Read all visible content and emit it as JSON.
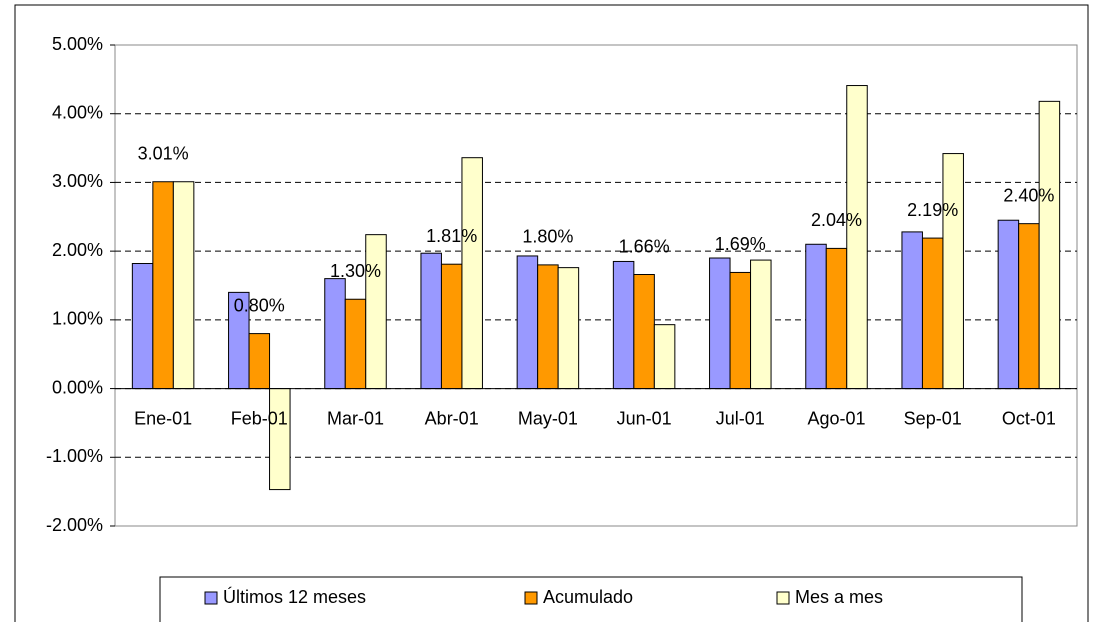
{
  "chart_data": {
    "type": "bar",
    "categories": [
      "Ene-01",
      "Feb-01",
      "Mar-01",
      "Abr-01",
      "May-01",
      "Jun-01",
      "Jul-01",
      "Ago-01",
      "Sep-01",
      "Oct-01"
    ],
    "series": [
      {
        "name": "Últimos 12 meses",
        "color": "#9999ff",
        "values": [
          1.82,
          1.4,
          1.6,
          1.97,
          1.93,
          1.85,
          1.9,
          2.1,
          2.28,
          2.45
        ]
      },
      {
        "name": "Acumulado",
        "color": "#ff9900",
        "values": [
          3.01,
          0.8,
          1.3,
          1.81,
          1.8,
          1.66,
          1.69,
          2.04,
          2.19,
          2.4
        ],
        "value_labels": [
          "3.01%",
          "0.80%",
          "1.30%",
          "1.81%",
          "1.80%",
          "1.66%",
          "1.69%",
          "2.04%",
          "2.19%",
          "2.40%"
        ]
      },
      {
        "name": "Mes a mes",
        "color": "#ffffcc",
        "values": [
          3.01,
          -1.47,
          2.24,
          3.36,
          1.76,
          0.93,
          1.87,
          4.41,
          3.42,
          4.18
        ]
      }
    ],
    "ylim": [
      -2,
      5
    ],
    "yticks": [
      {
        "value": -2,
        "label": "-2.00%"
      },
      {
        "value": -1,
        "label": "-1.00%"
      },
      {
        "value": 0,
        "label": "0.00%"
      },
      {
        "value": 1,
        "label": "1.00%"
      },
      {
        "value": 2,
        "label": "2.00%"
      },
      {
        "value": 3,
        "label": "3.00%"
      },
      {
        "value": 4,
        "label": "4.00%"
      },
      {
        "value": 5,
        "label": "5.00%"
      }
    ],
    "grid": true,
    "legend": "bottom"
  }
}
